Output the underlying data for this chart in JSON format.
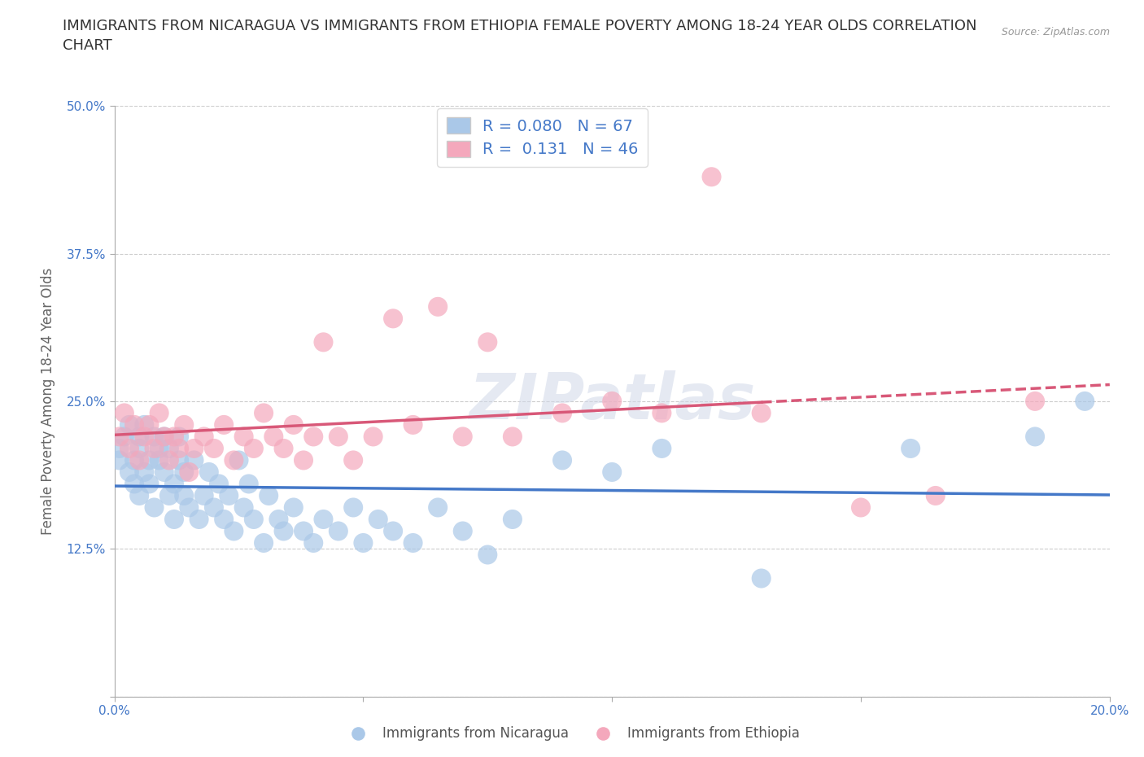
{
  "title": "IMMIGRANTS FROM NICARAGUA VS IMMIGRANTS FROM ETHIOPIA FEMALE POVERTY AMONG 18-24 YEAR OLDS CORRELATION\nCHART",
  "source": "Source: ZipAtlas.com",
  "ylabel": "Female Poverty Among 18-24 Year Olds",
  "xlim": [
    0.0,
    0.2
  ],
  "ylim": [
    0.0,
    0.5
  ],
  "xticks": [
    0.0,
    0.05,
    0.1,
    0.15,
    0.2
  ],
  "xtick_labels": [
    "0.0%",
    "",
    "",
    "",
    "20.0%"
  ],
  "yticks": [
    0.0,
    0.125,
    0.25,
    0.375,
    0.5
  ],
  "ytick_labels": [
    "",
    "12.5%",
    "25.0%",
    "37.5%",
    "50.0%"
  ],
  "nicaragua_R": 0.08,
  "nicaragua_N": 67,
  "ethiopia_R": 0.131,
  "ethiopia_N": 46,
  "nicaragua_color": "#aac8e8",
  "ethiopia_color": "#f4a8bc",
  "nicaragua_line_color": "#4478c8",
  "ethiopia_line_color": "#d85878",
  "watermark": "ZIPatlas",
  "legend_labels": [
    "Immigrants from Nicaragua",
    "Immigrants from Ethiopia"
  ],
  "nicaragua_x": [
    0.001,
    0.001,
    0.002,
    0.003,
    0.003,
    0.004,
    0.004,
    0.005,
    0.005,
    0.005,
    0.006,
    0.006,
    0.007,
    0.007,
    0.008,
    0.008,
    0.009,
    0.009,
    0.01,
    0.01,
    0.011,
    0.011,
    0.012,
    0.012,
    0.013,
    0.013,
    0.014,
    0.014,
    0.015,
    0.016,
    0.017,
    0.018,
    0.019,
    0.02,
    0.021,
    0.022,
    0.023,
    0.024,
    0.025,
    0.026,
    0.027,
    0.028,
    0.03,
    0.031,
    0.033,
    0.034,
    0.036,
    0.038,
    0.04,
    0.042,
    0.045,
    0.048,
    0.05,
    0.053,
    0.056,
    0.06,
    0.065,
    0.07,
    0.075,
    0.08,
    0.09,
    0.1,
    0.11,
    0.13,
    0.16,
    0.185,
    0.195
  ],
  "nicaragua_y": [
    0.21,
    0.2,
    0.22,
    0.19,
    0.23,
    0.18,
    0.2,
    0.22,
    0.17,
    0.21,
    0.19,
    0.23,
    0.2,
    0.18,
    0.22,
    0.16,
    0.2,
    0.21,
    0.19,
    0.22,
    0.17,
    0.21,
    0.15,
    0.18,
    0.2,
    0.22,
    0.17,
    0.19,
    0.16,
    0.2,
    0.15,
    0.17,
    0.19,
    0.16,
    0.18,
    0.15,
    0.17,
    0.14,
    0.2,
    0.16,
    0.18,
    0.15,
    0.13,
    0.17,
    0.15,
    0.14,
    0.16,
    0.14,
    0.13,
    0.15,
    0.14,
    0.16,
    0.13,
    0.15,
    0.14,
    0.13,
    0.16,
    0.14,
    0.12,
    0.15,
    0.2,
    0.19,
    0.21,
    0.1,
    0.21,
    0.22,
    0.25
  ],
  "ethiopia_x": [
    0.001,
    0.002,
    0.003,
    0.004,
    0.005,
    0.006,
    0.007,
    0.008,
    0.009,
    0.01,
    0.011,
    0.012,
    0.013,
    0.014,
    0.015,
    0.016,
    0.018,
    0.02,
    0.022,
    0.024,
    0.026,
    0.028,
    0.03,
    0.032,
    0.034,
    0.036,
    0.038,
    0.04,
    0.042,
    0.045,
    0.048,
    0.052,
    0.056,
    0.06,
    0.065,
    0.07,
    0.075,
    0.08,
    0.09,
    0.1,
    0.11,
    0.12,
    0.13,
    0.15,
    0.165,
    0.185
  ],
  "ethiopia_y": [
    0.22,
    0.24,
    0.21,
    0.23,
    0.2,
    0.22,
    0.23,
    0.21,
    0.24,
    0.22,
    0.2,
    0.22,
    0.21,
    0.23,
    0.19,
    0.21,
    0.22,
    0.21,
    0.23,
    0.2,
    0.22,
    0.21,
    0.24,
    0.22,
    0.21,
    0.23,
    0.2,
    0.22,
    0.3,
    0.22,
    0.2,
    0.22,
    0.32,
    0.23,
    0.33,
    0.22,
    0.3,
    0.22,
    0.24,
    0.25,
    0.24,
    0.44,
    0.24,
    0.16,
    0.17,
    0.25
  ],
  "grid_color": "#cccccc",
  "background_color": "#ffffff",
  "title_fontsize": 13,
  "axis_label_fontsize": 12,
  "tick_fontsize": 11
}
